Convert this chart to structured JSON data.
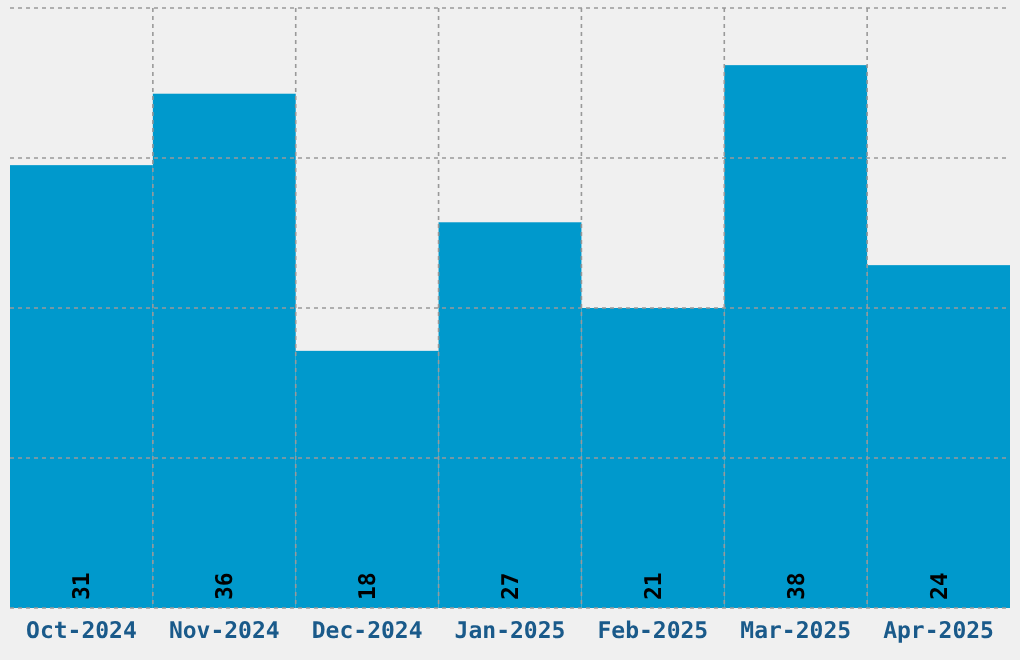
{
  "chart_data": {
    "type": "bar",
    "categories": [
      "Oct-2024",
      "Nov-2024",
      "Dec-2024",
      "Jan-2025",
      "Feb-2025",
      "Mar-2025",
      "Apr-2025"
    ],
    "values": [
      31,
      36,
      18,
      27,
      21,
      38,
      24
    ],
    "color": "#0099cc",
    "ylim": [
      0,
      42
    ],
    "yticks": [
      {
        "value": 0,
        "label": null
      },
      {
        "value": 10.5,
        "label": null
      },
      {
        "value": 21,
        "label": null
      },
      {
        "value": 31.5,
        "label": null
      },
      {
        "value": 42,
        "label": null
      }
    ],
    "grid": true,
    "tick_labels": "x",
    "data_labels": true
  }
}
